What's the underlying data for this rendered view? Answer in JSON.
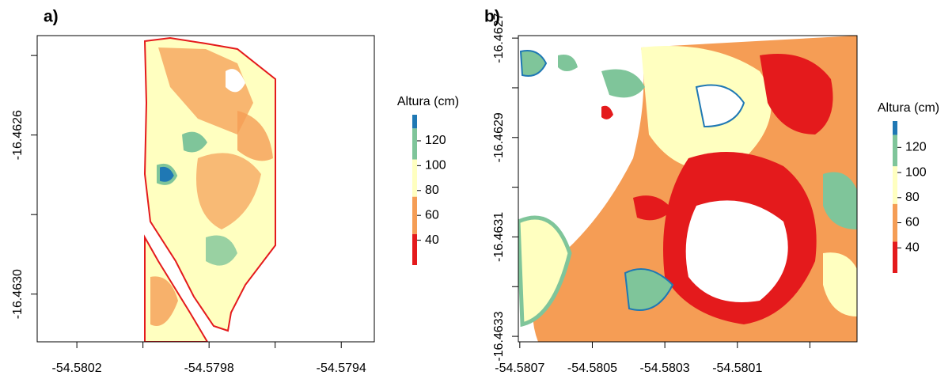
{
  "chart_data": [
    {
      "type": "raster",
      "title": "a)",
      "xlim": [
        -54.58032,
        -54.5793
      ],
      "ylim": [
        -16.46312,
        -16.46235
      ],
      "xticks": [
        -54.5802,
        {
          "value": -54.58,
          "label": null
        },
        -54.5798,
        {
          "value": -54.5796,
          "label": null
        },
        -54.5794
      ],
      "yticks": [
        {
          "value": -16.4624,
          "label": null
        },
        -16.4626,
        {
          "value": -16.4628,
          "label": null
        },
        {
          "value": -16.463,
          "label": "-16.4630"
        }
      ],
      "colorbar": {
        "title": "Altura (cm)",
        "ticks": [
          40,
          60,
          80,
          100,
          120
        ],
        "breaks": [
          20,
          45,
          75,
          105,
          130,
          141
        ],
        "colors": [
          "#e41a1c",
          "#f59d55",
          "#ffffc0",
          "#7fc59a",
          "#1f78b4"
        ]
      }
    },
    {
      "type": "raster",
      "title": "b)",
      "xlim": [
        -54.580704,
        -54.57977
      ],
      "ylim": [
        -16.463311,
        -16.462695
      ],
      "xticks": [
        -54.5807,
        -54.5805,
        -54.5803,
        -54.5801,
        {
          "value": -54.5799,
          "label": null
        }
      ],
      "yticks": [
        -16.4627,
        {
          "value": -16.4628,
          "label": null
        },
        -16.4629,
        {
          "value": -16.463,
          "label": null
        },
        -16.4631,
        {
          "value": -16.4632,
          "label": null
        },
        -16.4633
      ],
      "colorbar": {
        "title": "Altura (cm)",
        "ticks": [
          40,
          60,
          80,
          100,
          120
        ],
        "breaks": [
          20,
          45,
          75,
          105,
          130,
          141
        ],
        "colors": [
          "#e41a1c",
          "#f59d55",
          "#ffffc0",
          "#7fc59a",
          "#1f78b4"
        ]
      }
    }
  ]
}
